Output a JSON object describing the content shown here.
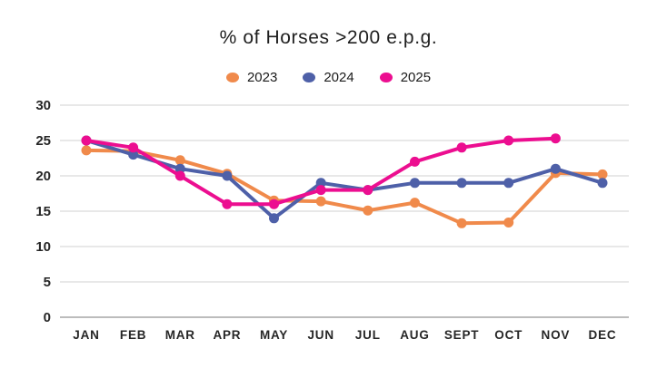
{
  "chart_data": {
    "type": "line",
    "title": "% of Horses >200 e.p.g.",
    "xlabel": "",
    "ylabel": "",
    "ylim": [
      0,
      30
    ],
    "yticks": [
      0,
      5,
      10,
      15,
      20,
      25,
      30
    ],
    "grid": true,
    "legend_position": "top",
    "categories": [
      "JAN",
      "FEB",
      "MAR",
      "APR",
      "MAY",
      "JUN",
      "JUL",
      "AUG",
      "SEPT",
      "OCT",
      "NOV",
      "DEC"
    ],
    "series": [
      {
        "name": "2023",
        "color": "#F08A4B",
        "values": [
          23.6,
          23.5,
          22.2,
          20.3,
          16.5,
          16.4,
          15.1,
          16.2,
          13.3,
          13.4,
          20.4,
          20.2
        ]
      },
      {
        "name": "2024",
        "color": "#4E60A8",
        "values": [
          25,
          23,
          21,
          20,
          14,
          19,
          18,
          19,
          19,
          19,
          21,
          19
        ]
      },
      {
        "name": "2025",
        "color": "#EC0E90",
        "values": [
          25,
          24,
          20,
          16,
          16,
          18,
          18,
          22,
          24,
          25,
          25.3,
          null
        ]
      }
    ],
    "colors": {
      "gridline": "#d9d9d9",
      "baseline": "#a6a6a6",
      "tick_text": "#262626",
      "title_text": "#1f1f1f"
    }
  }
}
